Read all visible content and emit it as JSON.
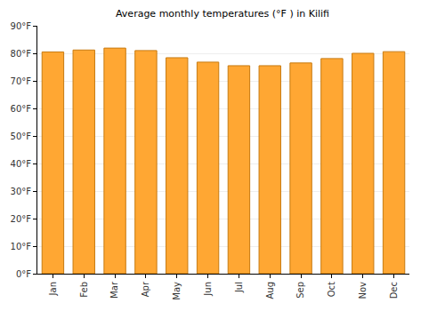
{
  "chart_data": {
    "type": "bar",
    "title": "Average monthly temperatures (°F ) in Kilifi",
    "categories": [
      "Jan",
      "Feb",
      "Mar",
      "Apr",
      "May",
      "Jun",
      "Jul",
      "Aug",
      "Sep",
      "Oct",
      "Nov",
      "Dec"
    ],
    "values": [
      80.5,
      81.2,
      81.9,
      81.0,
      78.4,
      76.8,
      75.5,
      75.5,
      76.5,
      78.1,
      80.0,
      80.6
    ],
    "color": "#ffa733",
    "ylim": [
      0,
      90
    ],
    "yticks": [
      {
        "value": 0,
        "label": "0°F"
      },
      {
        "value": 10,
        "label": "10°F"
      },
      {
        "value": 20,
        "label": "20°F"
      },
      {
        "value": 30,
        "label": "30°F"
      },
      {
        "value": 40,
        "label": "40°F"
      },
      {
        "value": 50,
        "label": "50°F"
      },
      {
        "value": 60,
        "label": "60°F"
      },
      {
        "value": 70,
        "label": "70°F"
      },
      {
        "value": 80,
        "label": "80°F"
      },
      {
        "value": 90,
        "label": "90°F"
      }
    ],
    "grid": true
  }
}
